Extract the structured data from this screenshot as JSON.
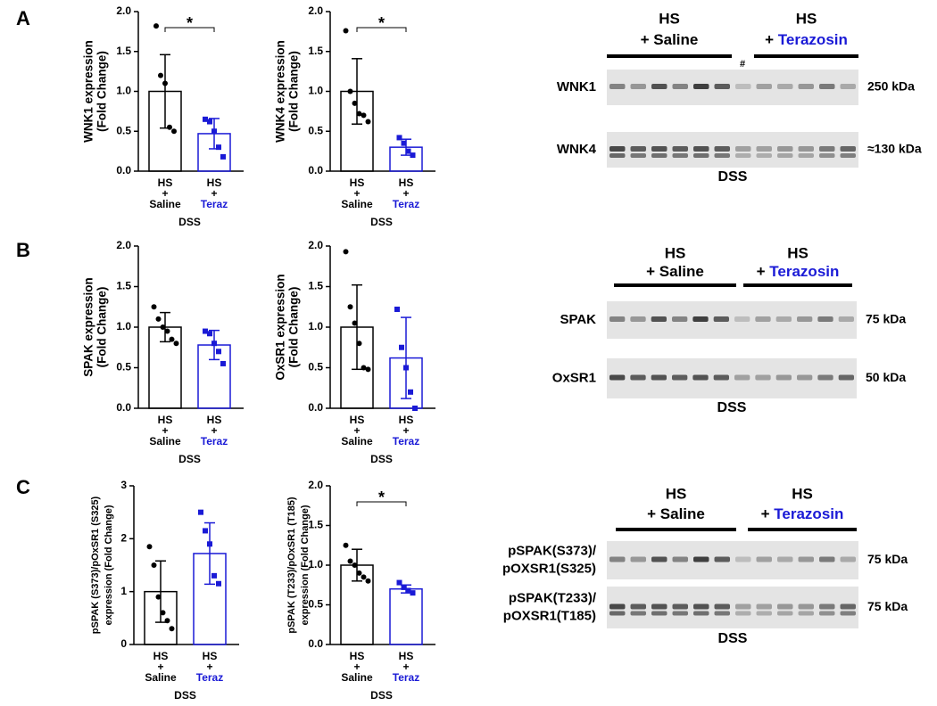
{
  "panel_labels": [
    "A",
    "B",
    "C"
  ],
  "chart_data": [
    {
      "type": "bar",
      "ylabel": [
        "WNK1 expression",
        "(Fold Change)"
      ],
      "categories": [
        [
          "HS",
          "+",
          "Saline"
        ],
        [
          "HS",
          "+",
          "Teraz"
        ]
      ],
      "colors": [
        "#000000",
        "#1a1ad6"
      ],
      "values": [
        1.0,
        0.47
      ],
      "errors": [
        0.46,
        0.19
      ],
      "points": [
        [
          1.82,
          1.2,
          1.1,
          0.55,
          0.5
        ],
        [
          0.65,
          0.62,
          0.5,
          0.3,
          0.18
        ]
      ],
      "group_label": "DSS",
      "significance": "*",
      "ylim": [
        0,
        2
      ],
      "yticks": [
        {
          "value": 0,
          "label": "0.0"
        },
        0.5,
        {
          "value": 1,
          "label": "1.0"
        },
        1.5,
        {
          "value": 2,
          "label": "2.0"
        }
      ]
    },
    {
      "type": "bar",
      "ylabel": [
        "WNK4 expression",
        "(Fold Change)"
      ],
      "categories": [
        [
          "HS",
          "+",
          "Saline"
        ],
        [
          "HS",
          "+",
          "Teraz"
        ]
      ],
      "colors": [
        "#000000",
        "#1a1ad6"
      ],
      "values": [
        1.0,
        0.3
      ],
      "errors": [
        0.41,
        0.1
      ],
      "points": [
        [
          1.76,
          1.0,
          0.85,
          0.72,
          0.7,
          0.62
        ],
        [
          0.42,
          0.35,
          0.25,
          0.2
        ]
      ],
      "group_label": "DSS",
      "significance": "*",
      "ylim": [
        0,
        2
      ],
      "yticks": [
        {
          "value": 0,
          "label": "0.0"
        },
        0.5,
        {
          "value": 1,
          "label": "1.0"
        },
        1.5,
        {
          "value": 2,
          "label": "2.0"
        }
      ]
    },
    {
      "type": "bar",
      "ylabel": [
        "SPAK expression",
        "(Fold Change)"
      ],
      "categories": [
        [
          "HS",
          "+",
          "Saline"
        ],
        [
          "HS",
          "+",
          "Teraz"
        ]
      ],
      "colors": [
        "#000000",
        "#1a1ad6"
      ],
      "values": [
        1.0,
        0.78
      ],
      "errors": [
        0.18,
        0.18
      ],
      "points": [
        [
          1.25,
          1.1,
          1.0,
          0.95,
          0.85,
          0.8
        ],
        [
          0.95,
          0.92,
          0.8,
          0.7,
          0.55
        ]
      ],
      "group_label": "DSS",
      "ylim": [
        0,
        2
      ],
      "yticks": [
        {
          "value": 0,
          "label": "0.0"
        },
        0.5,
        {
          "value": 1,
          "label": "1.0"
        },
        1.5,
        {
          "value": 2,
          "label": "2.0"
        }
      ]
    },
    {
      "type": "bar",
      "ylabel": [
        "OxSR1 expression",
        "(Fold Change)"
      ],
      "categories": [
        [
          "HS",
          "+",
          "Saline"
        ],
        [
          "HS",
          "+",
          "Teraz"
        ]
      ],
      "colors": [
        "#000000",
        "#1a1ad6"
      ],
      "values": [
        1.0,
        0.62
      ],
      "errors": [
        0.52,
        0.5
      ],
      "points": [
        [
          1.93,
          1.25,
          1.05,
          0.8,
          0.5,
          0.48
        ],
        [
          1.22,
          0.75,
          0.5,
          0.2,
          0.0
        ]
      ],
      "group_label": "DSS",
      "ylim": [
        0,
        2
      ],
      "yticks": [
        {
          "value": 0,
          "label": "0.0"
        },
        0.5,
        {
          "value": 1,
          "label": "1.0"
        },
        1.5,
        {
          "value": 2,
          "label": "2.0"
        }
      ]
    },
    {
      "type": "bar",
      "ylabel": [
        "pSPAK (S373)/pOxSR1 (S325)",
        "expression (Fold Change)"
      ],
      "categories": [
        [
          "HS",
          "+",
          "Saline"
        ],
        [
          "HS",
          "+",
          "Teraz"
        ]
      ],
      "colors": [
        "#000000",
        "#1a1ad6"
      ],
      "values": [
        1.0,
        1.72
      ],
      "errors": [
        0.58,
        0.58
      ],
      "points": [
        [
          1.85,
          1.5,
          0.9,
          0.6,
          0.45,
          0.3
        ],
        [
          2.5,
          2.15,
          1.9,
          1.3,
          1.15
        ]
      ],
      "group_label": "DSS",
      "ylim": [
        0,
        3
      ],
      "yticks": [
        0,
        1,
        2,
        3
      ]
    },
    {
      "type": "bar",
      "ylabel": [
        "pSPAK (T233)/pOxSR1 (T185)",
        "expression (Fold Change)"
      ],
      "categories": [
        [
          "HS",
          "+",
          "Saline"
        ],
        [
          "HS",
          "+",
          "Teraz"
        ]
      ],
      "colors": [
        "#000000",
        "#1a1ad6"
      ],
      "values": [
        1.0,
        0.7
      ],
      "errors": [
        0.2,
        0.05
      ],
      "points": [
        [
          1.25,
          1.05,
          1.0,
          0.9,
          0.85,
          0.8
        ],
        [
          0.78,
          0.72,
          0.68,
          0.65
        ]
      ],
      "group_label": "DSS",
      "significance": "*",
      "ylim": [
        0,
        2
      ],
      "yticks": [
        {
          "value": 0,
          "label": "0.0"
        },
        0.5,
        {
          "value": 1,
          "label": "1.0"
        },
        1.5,
        {
          "value": 2,
          "label": "2.0"
        }
      ]
    }
  ],
  "blots": [
    {
      "groups": [
        {
          "title": "HS",
          "plus": "+",
          "name": "Saline",
          "name_color": "#000000"
        },
        {
          "title": "HS",
          "plus": "+",
          "name": "Terazosin",
          "name_color": "#1a1ad6"
        }
      ],
      "marker": "#",
      "rows": [
        {
          "label": [
            "WNK1"
          ],
          "size": "250 kDa"
        },
        {
          "label": [
            "WNK4"
          ],
          "size": "≈130 kDa"
        }
      ],
      "footer": "DSS"
    },
    {
      "groups": [
        {
          "title": "HS",
          "plus": "+",
          "name": "Saline",
          "name_color": "#000000"
        },
        {
          "title": "HS",
          "plus": "+",
          "name": "Terazosin",
          "name_color": "#1a1ad6"
        }
      ],
      "rows": [
        {
          "label": [
            "SPAK"
          ],
          "size": "75 kDa"
        },
        {
          "label": [
            "OxSR1"
          ],
          "size": "50 kDa"
        }
      ],
      "footer": "DSS"
    },
    {
      "groups": [
        {
          "title": "HS",
          "plus": "+",
          "name": "Saline",
          "name_color": "#000000"
        },
        {
          "title": "HS",
          "plus": "+",
          "name": "Terazosin",
          "name_color": "#1a1ad6"
        }
      ],
      "rows": [
        {
          "label": [
            "pSPAK(S373)/",
            "pOXSR1(S325)"
          ],
          "size": "75 kDa"
        },
        {
          "label": [
            "pSPAK(T233)/",
            "pOXSR1(T185)"
          ],
          "size": "75 kDa"
        }
      ],
      "footer": "DSS"
    }
  ]
}
